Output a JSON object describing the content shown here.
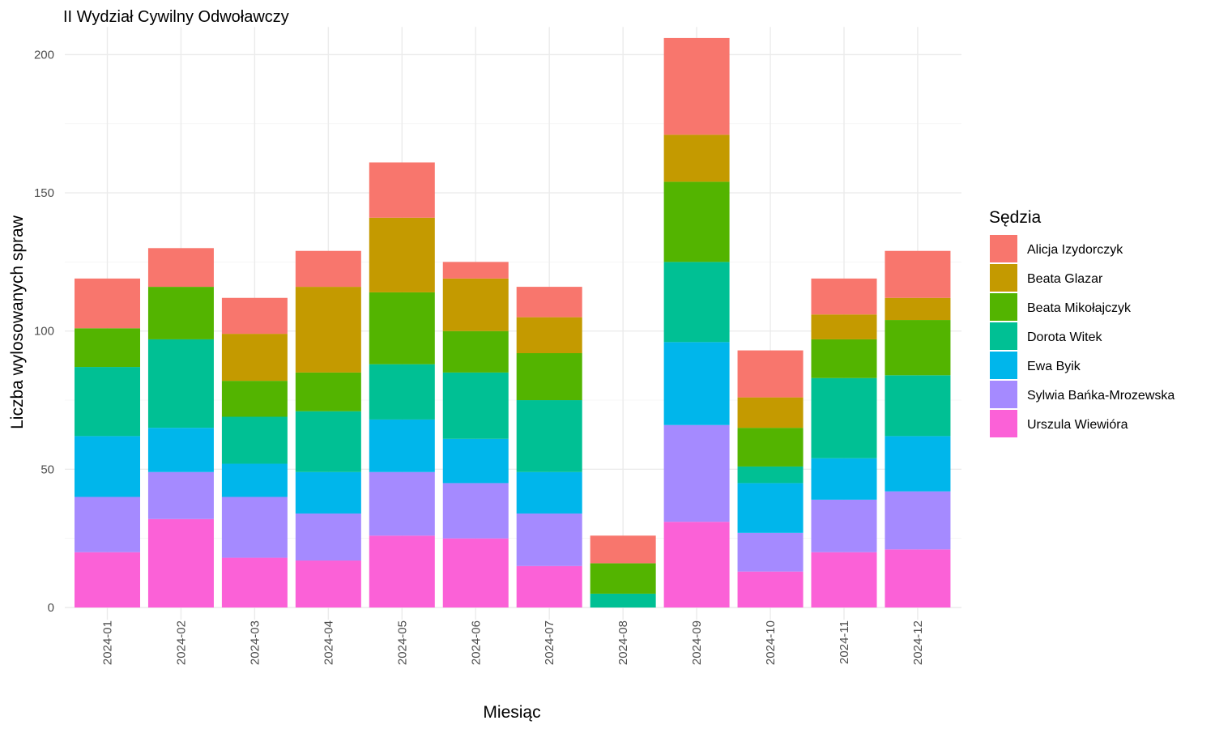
{
  "chart_data": {
    "type": "bar",
    "stacked": true,
    "title": "II Wydział Cywilny Odwoławczy",
    "xlabel": "Miesiąc",
    "ylabel": "Liczba wylosowanych spraw",
    "ylim": [
      0,
      210
    ],
    "yticks": [
      0,
      50,
      100,
      150,
      200
    ],
    "grid": true,
    "legend_title": "Sędzia",
    "legend_position": "right",
    "categories": [
      "2024-01",
      "2024-02",
      "2024-03",
      "2024-04",
      "2024-05",
      "2024-06",
      "2024-07",
      "2024-08",
      "2024-09",
      "2024-10",
      "2024-11",
      "2024-12"
    ],
    "series": [
      {
        "name": "Alicja Izydorczyk",
        "color": "#F8766D",
        "values": [
          18,
          14,
          13,
          13,
          20,
          6,
          11,
          10,
          35,
          17,
          13,
          17
        ]
      },
      {
        "name": "Beata Glazar",
        "color": "#C49A00",
        "values": [
          0,
          0,
          17,
          31,
          27,
          19,
          13,
          0,
          17,
          11,
          9,
          8
        ]
      },
      {
        "name": "Beata Mikołajczyk",
        "color": "#53B400",
        "values": [
          14,
          19,
          13,
          14,
          26,
          15,
          17,
          11,
          29,
          14,
          14,
          20
        ]
      },
      {
        "name": "Dorota Witek",
        "color": "#00C094",
        "values": [
          25,
          32,
          17,
          22,
          20,
          24,
          26,
          5,
          29,
          6,
          29,
          22
        ]
      },
      {
        "name": "Ewa Byik",
        "color": "#00B6EB",
        "values": [
          22,
          16,
          12,
          15,
          19,
          16,
          15,
          0,
          30,
          18,
          15,
          20
        ]
      },
      {
        "name": "Sylwia Bańka-Mrozewska",
        "color": "#A58AFF",
        "values": [
          20,
          17,
          22,
          17,
          23,
          20,
          19,
          0,
          35,
          14,
          19,
          21
        ]
      },
      {
        "name": "Urszula Wiewióra",
        "color": "#FB61D7",
        "values": [
          20,
          32,
          18,
          17,
          26,
          25,
          15,
          0,
          31,
          13,
          20,
          21
        ]
      }
    ]
  }
}
